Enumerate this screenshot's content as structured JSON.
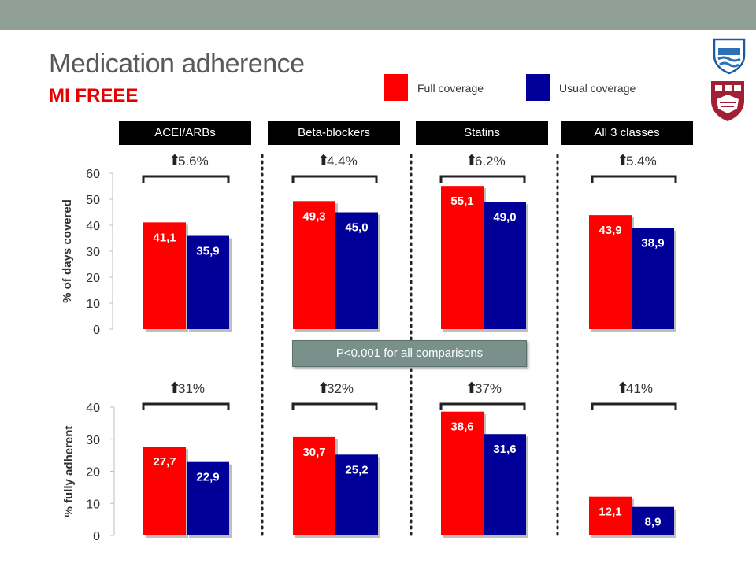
{
  "title": "Medication adherence",
  "subtitle": "MI FREEE",
  "legend": [
    {
      "label": "Full coverage",
      "color": "#ff0000"
    },
    {
      "label": "Usual coverage",
      "color": "#000099"
    }
  ],
  "logos": [
    "bwh-shield-logo",
    "harvard-medical-shield-logo"
  ],
  "pvalue_note": "P<0.001 for all comparisons",
  "chart_data": [
    {
      "type": "bar",
      "categories": [
        "ACEI/ARBs",
        "Beta-blockers",
        "Statins",
        "All 3 classes"
      ],
      "ylabel": "% of days covered",
      "ylim": [
        0,
        60
      ],
      "yticks": [
        "0",
        "10",
        "20",
        "30",
        "40",
        "50",
        "60"
      ],
      "series": [
        {
          "name": "Full coverage",
          "values": [
            41.1,
            49.3,
            55.1,
            43.9
          ],
          "labels": [
            "41,1",
            "49,3",
            "55,1",
            "43,9"
          ],
          "color": "#ff0000"
        },
        {
          "name": "Usual coverage",
          "values": [
            35.9,
            45.0,
            49.0,
            38.9
          ],
          "labels": [
            "35,9",
            "45,0",
            "49,0",
            "38,9"
          ],
          "color": "#000099"
        }
      ],
      "annotations": [
        "5.6%",
        "4.4%",
        "6.2%",
        "5.4%"
      ]
    },
    {
      "type": "bar",
      "categories": [
        "ACEI/ARBs",
        "Beta-blockers",
        "Statins",
        "All 3 classes"
      ],
      "ylabel": "% fully adherent",
      "ylim": [
        0,
        40
      ],
      "yticks": [
        "0",
        "10",
        "20",
        "30",
        "40"
      ],
      "series": [
        {
          "name": "Full coverage",
          "values": [
            27.7,
            30.7,
            38.6,
            12.1
          ],
          "labels": [
            "27,7",
            "30,7",
            "38,6",
            "12,1"
          ],
          "color": "#ff0000"
        },
        {
          "name": "Usual coverage",
          "values": [
            22.9,
            25.2,
            31.6,
            8.9
          ],
          "labels": [
            "22,9",
            "25,2",
            "31,6",
            "8,9"
          ],
          "color": "#000099"
        }
      ],
      "annotations": [
        "31%",
        "32%",
        "37%",
        "41%"
      ]
    }
  ]
}
